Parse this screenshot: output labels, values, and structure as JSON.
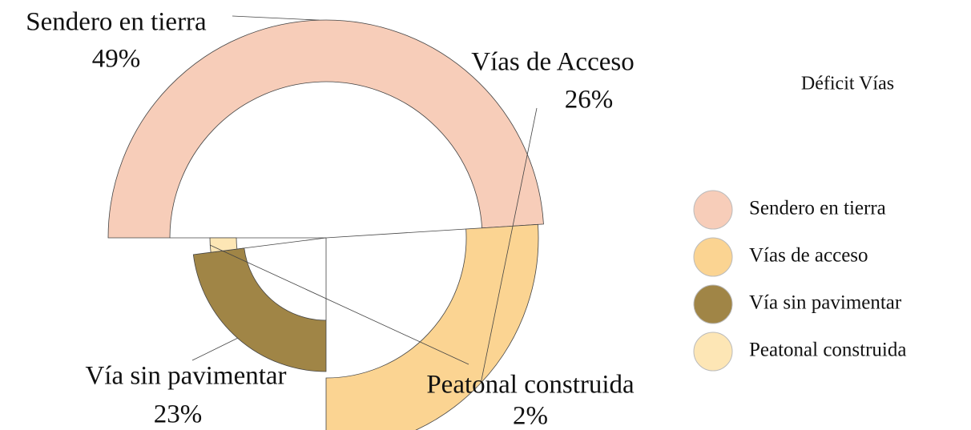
{
  "chart_data": {
    "type": "donut",
    "title": "Déficit Vías",
    "categories": [
      "Sendero en tierra",
      "Vías de acceso",
      "Vía sin pavimentar",
      "Peatonal construida"
    ],
    "labels": [
      "Sendero en tierra",
      "Vías de Acceso",
      "Vía sin pavimentar",
      "Peatonal  construida"
    ],
    "values": [
      49,
      26,
      23,
      2
    ],
    "value_labels": [
      "49%",
      "26%",
      "23%",
      "2%"
    ],
    "colors": [
      "#f7cdb9",
      "#fbd492",
      "#a08546",
      "#fde6b5"
    ],
    "legend": "right"
  }
}
